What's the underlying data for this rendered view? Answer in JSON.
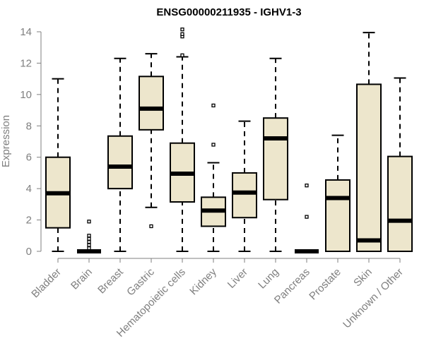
{
  "chart_data": {
    "type": "boxplot",
    "title": "ENSG00000211935 - IGHV1-3",
    "xlabel": "",
    "ylabel": "Expression",
    "ylim": [
      0,
      14
    ],
    "yticks": [
      0,
      2,
      4,
      6,
      8,
      10,
      12,
      14
    ],
    "grid": false,
    "box_fill": "#ede6cc",
    "box_stroke": "#000000",
    "axis_color": "#7f7f7f",
    "categories": [
      "Bladder",
      "Brain",
      "Breast",
      "Gastric",
      "Hematopoietic cells",
      "Kidney",
      "Liver",
      "Lung",
      "Pancreas",
      "Prostate",
      "Skin",
      "Unknown / Other"
    ],
    "boxes": [
      {
        "min": 0,
        "q1": 1.5,
        "median": 3.7,
        "q3": 6.0,
        "max": 11.0,
        "outliers": []
      },
      {
        "min": 0,
        "q1": 0,
        "median": 0,
        "q3": 0,
        "max": 0,
        "outliers": [
          0.2,
          0.4,
          0.6,
          0.8,
          1.0,
          1.9
        ]
      },
      {
        "min": 0,
        "q1": 4.0,
        "median": 5.4,
        "q3": 7.35,
        "max": 12.3,
        "outliers": []
      },
      {
        "min": 2.8,
        "q1": 7.75,
        "median": 9.1,
        "q3": 11.15,
        "max": 12.6,
        "outliers": [
          1.6
        ]
      },
      {
        "min": 0,
        "q1": 3.15,
        "median": 4.95,
        "q3": 6.9,
        "max": 12.4,
        "outliers": [
          12.5,
          13.7,
          13.85,
          14.15
        ]
      },
      {
        "min": 0,
        "q1": 1.6,
        "median": 2.6,
        "q3": 3.45,
        "max": 5.65,
        "outliers": [
          6.8,
          9.3
        ]
      },
      {
        "min": 0,
        "q1": 2.15,
        "median": 3.75,
        "q3": 5.0,
        "max": 8.3,
        "outliers": []
      },
      {
        "min": 0,
        "q1": 3.3,
        "median": 7.2,
        "q3": 8.5,
        "max": 12.3,
        "outliers": []
      },
      {
        "min": 0,
        "q1": 0,
        "median": 0,
        "q3": 0,
        "max": 0,
        "outliers": [
          2.2,
          4.2
        ]
      },
      {
        "min": 0,
        "q1": 0,
        "median": 3.4,
        "q3": 4.55,
        "max": 7.4,
        "outliers": []
      },
      {
        "min": 0,
        "q1": 0,
        "median": 0.7,
        "q3": 10.65,
        "max": 13.95,
        "outliers": []
      },
      {
        "min": 0,
        "q1": 0,
        "median": 1.95,
        "q3": 6.05,
        "max": 11.05,
        "outliers": []
      }
    ]
  }
}
